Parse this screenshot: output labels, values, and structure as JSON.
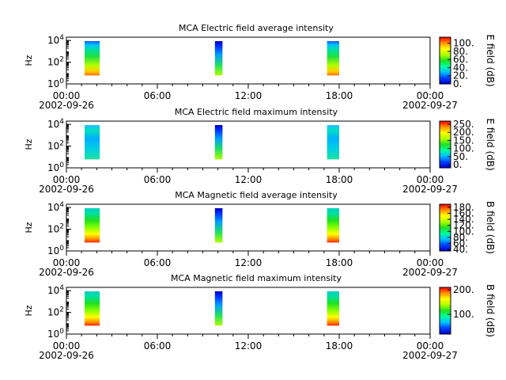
{
  "chart_data": {
    "type": "heatmap",
    "x_ticks": [
      "00:00",
      "06:00",
      "12:00",
      "18:00",
      "00:00"
    ],
    "x_start_date": "2002-09-26",
    "x_end_date": "2002-09-27",
    "x_range_hours": [
      0,
      24
    ],
    "y_label": "Hz",
    "y_scale": "log",
    "y_ticks": [
      "10^0",
      "10^2",
      "10^4"
    ],
    "y_range_hz": [
      1,
      20000
    ],
    "colormap": [
      "#0000cc",
      "#0040ff",
      "#00c0ff",
      "#00ffa0",
      "#20e020",
      "#b0ff00",
      "#ffff00",
      "#ff9000",
      "#ff0000"
    ],
    "data_windows_hours": [
      [
        1.2,
        2.2
      ],
      [
        9.8,
        10.3
      ],
      [
        17.2,
        18.0
      ]
    ],
    "panels": [
      {
        "title": "MCA  Electric field average intensity",
        "colorbar_label": "E field (dB)",
        "colorbar_ticks": [
          "0.",
          "20.",
          "40.",
          "60.",
          "80.",
          "100."
        ],
        "colorbar_range": [
          0,
          115
        ]
      },
      {
        "title": "MCA  Electric field maximum intensity",
        "colorbar_label": "E field (dB)",
        "colorbar_ticks": [
          "0.",
          "50.",
          "100.",
          "150.",
          "200.",
          "250."
        ],
        "colorbar_range": [
          -20,
          270
        ]
      },
      {
        "title": "MCA  Magnetic field average intensity",
        "colorbar_label": "B field (dB)",
        "colorbar_ticks": [
          "40.",
          "60.",
          "80.",
          "100.",
          "120.",
          "140.",
          "160.",
          "180."
        ],
        "colorbar_range": [
          35,
          190
        ]
      },
      {
        "title": "MCA  Magnetic field maximum intensity",
        "colorbar_label": "B field (dB)",
        "colorbar_ticks": [
          "100.",
          "200."
        ],
        "colorbar_range": [
          20,
          210
        ]
      }
    ]
  }
}
